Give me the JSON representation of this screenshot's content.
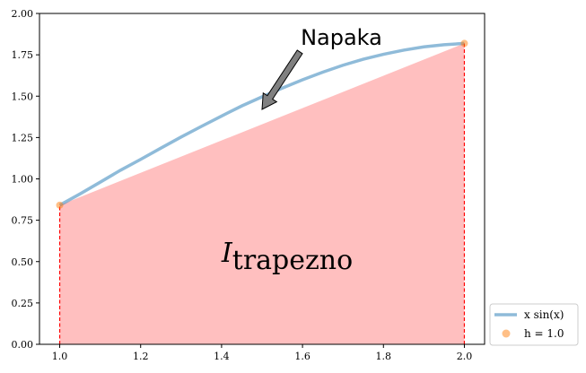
{
  "chart_data": {
    "type": "line",
    "title": "",
    "xlabel": "",
    "ylabel": "",
    "xlim": [
      0.95,
      2.05
    ],
    "ylim": [
      0.0,
      2.0
    ],
    "xticks": [
      1.0,
      1.2,
      1.4,
      1.6,
      1.8,
      2.0
    ],
    "xtick_labels": [
      "1.0",
      "1.2",
      "1.4",
      "1.6",
      "1.8",
      "2.0"
    ],
    "yticks": [
      0.0,
      0.25,
      0.5,
      0.75,
      1.0,
      1.25,
      1.5,
      1.75,
      2.0
    ],
    "ytick_labels": [
      "0.00",
      "0.25",
      "0.50",
      "0.75",
      "1.00",
      "1.25",
      "1.50",
      "1.75",
      "2.00"
    ],
    "grid": false,
    "legend_position": "outside-bottom-right",
    "series": [
      {
        "name": "x sin(x)",
        "kind": "line",
        "color": "#1f77b4",
        "x": [
          1.0,
          1.05,
          1.1,
          1.15,
          1.2,
          1.25,
          1.3,
          1.35,
          1.4,
          1.45,
          1.5,
          1.55,
          1.6,
          1.65,
          1.7,
          1.75,
          1.8,
          1.85,
          1.9,
          1.95,
          2.0
        ],
        "y": [
          0.841,
          0.909,
          0.98,
          1.052,
          1.118,
          1.186,
          1.253,
          1.317,
          1.38,
          1.441,
          1.496,
          1.549,
          1.599,
          1.645,
          1.687,
          1.723,
          1.753,
          1.778,
          1.798,
          1.811,
          1.819
        ]
      },
      {
        "name": "h = 1.0",
        "kind": "scatter",
        "color": "#ff7f0e",
        "x": [
          1.0,
          2.0
        ],
        "y": [
          0.841,
          1.819
        ]
      }
    ],
    "trapezoid": {
      "color": "#ff0000",
      "x": [
        1.0,
        2.0
      ],
      "y": [
        0.841,
        1.819
      ]
    },
    "annotations": {
      "error_label": "Napaka",
      "error_text_at": [
        1.6,
        1.8
      ],
      "error_arrow_tip": [
        1.5,
        1.42
      ],
      "region_label_main": "I",
      "region_label_sub": "trapezno",
      "region_label_at": [
        1.4,
        0.5
      ]
    },
    "legend": {
      "entries": [
        {
          "label": "x sin(x)",
          "kind": "line",
          "color": "#1f77b4"
        },
        {
          "label": "h = 1.0",
          "kind": "marker",
          "color": "#ff7f0e"
        }
      ]
    }
  }
}
